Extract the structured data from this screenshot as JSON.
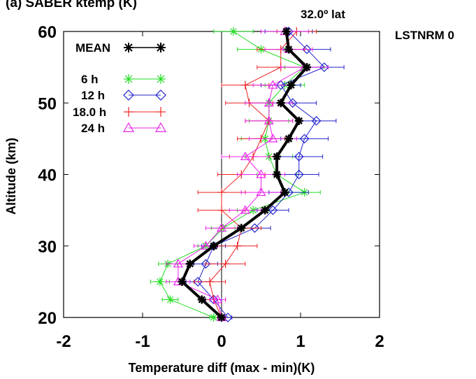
{
  "chart_data": {
    "type": "line",
    "title": "(a) SABER ktemp (K)",
    "annotations": {
      "latitude": "32.0º lat",
      "corner_label": "LSTNRM 0"
    },
    "xlabel": "Temperature diff (max - min)(K)",
    "ylabel": "Altitude (km)",
    "xlim": [
      -2,
      2
    ],
    "ylim": [
      20,
      60
    ],
    "xticks": [
      "-2",
      "-1",
      "0",
      "1",
      "2"
    ],
    "yticks": [
      "20",
      "30",
      "40",
      "50",
      "60"
    ],
    "grid": false,
    "legend_position": "top-left",
    "x_axis_reference_line": 0,
    "altitudes": [
      20,
      22.5,
      25,
      27.5,
      30,
      32.5,
      35,
      37.5,
      40,
      42.5,
      45,
      47.5,
      50,
      52.5,
      55,
      57.5,
      60
    ],
    "series": [
      {
        "name": "MEAN",
        "color": "#000000",
        "marker": "asterisk",
        "line_width": 4,
        "values": [
          0.0,
          -0.25,
          -0.5,
          -0.4,
          -0.1,
          0.25,
          0.55,
          0.8,
          0.7,
          0.7,
          0.85,
          0.98,
          0.75,
          0.88,
          1.08,
          0.85,
          0.82
        ],
        "errors": []
      },
      {
        "name": "6 h",
        "color": "#22dd22",
        "marker": "asterisk",
        "line_width": 1,
        "values": [
          -0.1,
          -0.65,
          -0.78,
          -0.68,
          -0.2,
          0.02,
          0.4,
          1.05,
          0.7,
          0.6,
          0.55,
          0.6,
          0.6,
          0.8,
          1.05,
          0.5,
          0.15
        ],
        "errors": [
          0.05,
          0.1,
          0.12,
          0.12,
          0.1,
          0.15,
          0.2,
          0.2,
          0.25,
          0.3,
          0.3,
          0.25,
          0.3,
          0.25,
          0.25,
          0.3,
          0.25
        ]
      },
      {
        "name": "12 h",
        "color": "#2222cc",
        "marker": "diamond",
        "line_width": 1,
        "values": [
          0.08,
          -0.1,
          -0.3,
          -0.2,
          -0.1,
          0.42,
          0.65,
          0.85,
          0.98,
          0.98,
          1.05,
          1.2,
          0.9,
          0.75,
          1.3,
          1.08,
          0.85
        ],
        "errors": [
          0.05,
          0.1,
          0.15,
          0.15,
          0.15,
          0.2,
          0.2,
          0.25,
          0.25,
          0.3,
          0.3,
          0.25,
          0.3,
          0.25,
          0.25,
          0.3,
          0.3
        ]
      },
      {
        "name": "18.0 h",
        "color": "#ee2222",
        "marker": "plus",
        "line_width": 1,
        "values": [
          0.0,
          -0.1,
          -0.15,
          0.05,
          0.2,
          0.25,
          0.0,
          0.0,
          0.25,
          0.4,
          0.5,
          0.6,
          0.35,
          0.3,
          0.75,
          0.75,
          0.95
        ],
        "errors": [
          0.05,
          0.15,
          0.2,
          0.25,
          0.25,
          0.25,
          0.3,
          0.3,
          0.3,
          0.3,
          0.3,
          0.3,
          0.3,
          0.3,
          0.3,
          0.3,
          0.25
        ]
      },
      {
        "name": "24 h",
        "color": "#ee22ee",
        "marker": "triangle",
        "line_width": 1,
        "values": [
          0.0,
          -0.05,
          -0.55,
          -0.55,
          -0.2,
          0.0,
          0.3,
          0.5,
          0.5,
          0.3,
          0.65,
          0.6,
          0.6,
          0.65,
          1.05,
          0.85,
          0.8
        ],
        "errors": [
          0.05,
          0.1,
          0.15,
          0.15,
          0.15,
          0.2,
          0.2,
          0.25,
          0.3,
          0.3,
          0.3,
          0.3,
          0.3,
          0.25,
          0.3,
          0.3,
          0.3
        ]
      }
    ]
  }
}
